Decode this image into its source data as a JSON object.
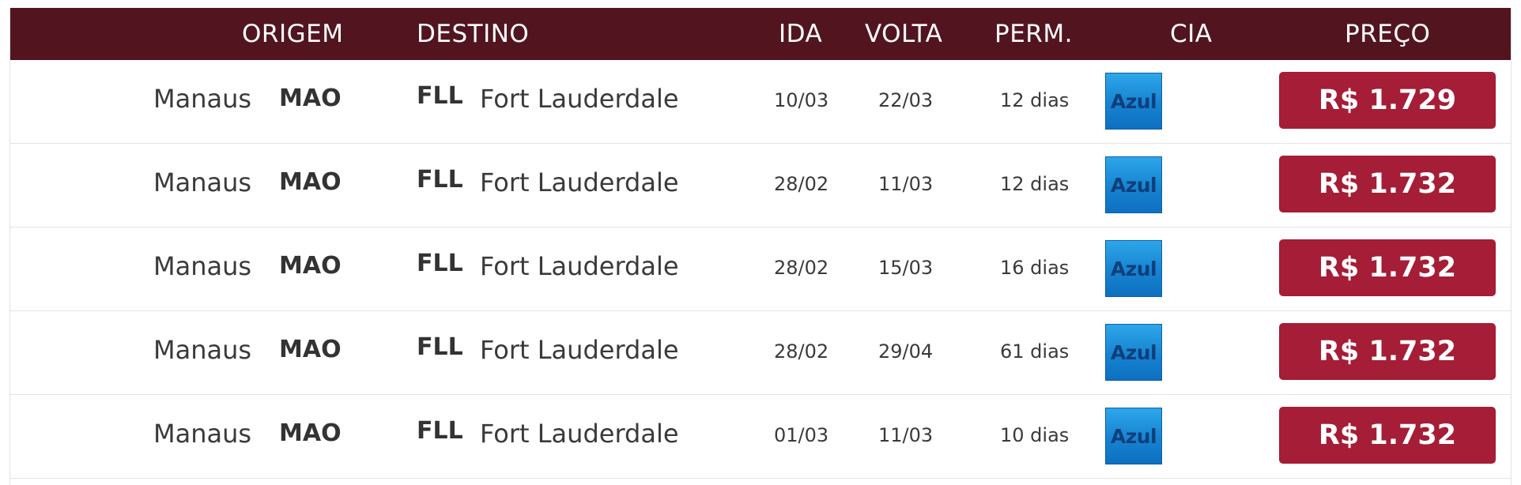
{
  "header": {
    "origin": "ORIGEM",
    "destination": "DESTINO",
    "depart": "IDA",
    "return": "VOLTA",
    "stay": "PERM.",
    "airline": "CIA",
    "price": "PREÇO"
  },
  "rows": [
    {
      "origin_city": "Manaus",
      "origin_code": "MAO",
      "dest_code": "FLL",
      "dest_city": "Fort Lauderdale",
      "depart": "10/03",
      "return": "22/03",
      "stay": "12 dias",
      "airline": "Azul",
      "price": "R$ 1.729"
    },
    {
      "origin_city": "Manaus",
      "origin_code": "MAO",
      "dest_code": "FLL",
      "dest_city": "Fort Lauderdale",
      "depart": "28/02",
      "return": "11/03",
      "stay": "12 dias",
      "airline": "Azul",
      "price": "R$ 1.732"
    },
    {
      "origin_city": "Manaus",
      "origin_code": "MAO",
      "dest_code": "FLL",
      "dest_city": "Fort Lauderdale",
      "depart": "28/02",
      "return": "15/03",
      "stay": "16 dias",
      "airline": "Azul",
      "price": "R$ 1.732"
    },
    {
      "origin_city": "Manaus",
      "origin_code": "MAO",
      "dest_code": "FLL",
      "dest_city": "Fort Lauderdale",
      "depart": "28/02",
      "return": "29/04",
      "stay": "61 dias",
      "airline": "Azul",
      "price": "R$ 1.732"
    },
    {
      "origin_city": "Manaus",
      "origin_code": "MAO",
      "dest_code": "FLL",
      "dest_city": "Fort Lauderdale",
      "depart": "01/03",
      "return": "11/03",
      "stay": "10 dias",
      "airline": "Azul",
      "price": "R$ 1.732"
    }
  ],
  "colors": {
    "header_bg": "#521520",
    "price_button": "#a51d36",
    "airline_logo": "#1683d1"
  }
}
